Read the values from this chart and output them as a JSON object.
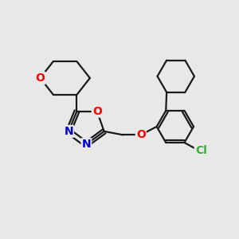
{
  "background_color": "#e8e8e8",
  "bond_color": "#1a1a1a",
  "bond_width": 1.6,
  "atom_colors": {
    "O": "#ff0000",
    "N": "#0000cc",
    "Cl": "#3aaa3a",
    "C": "#1a1a1a"
  },
  "font_size": 10,
  "fig_width": 3.0,
  "fig_height": 3.0,
  "dpi": 100
}
